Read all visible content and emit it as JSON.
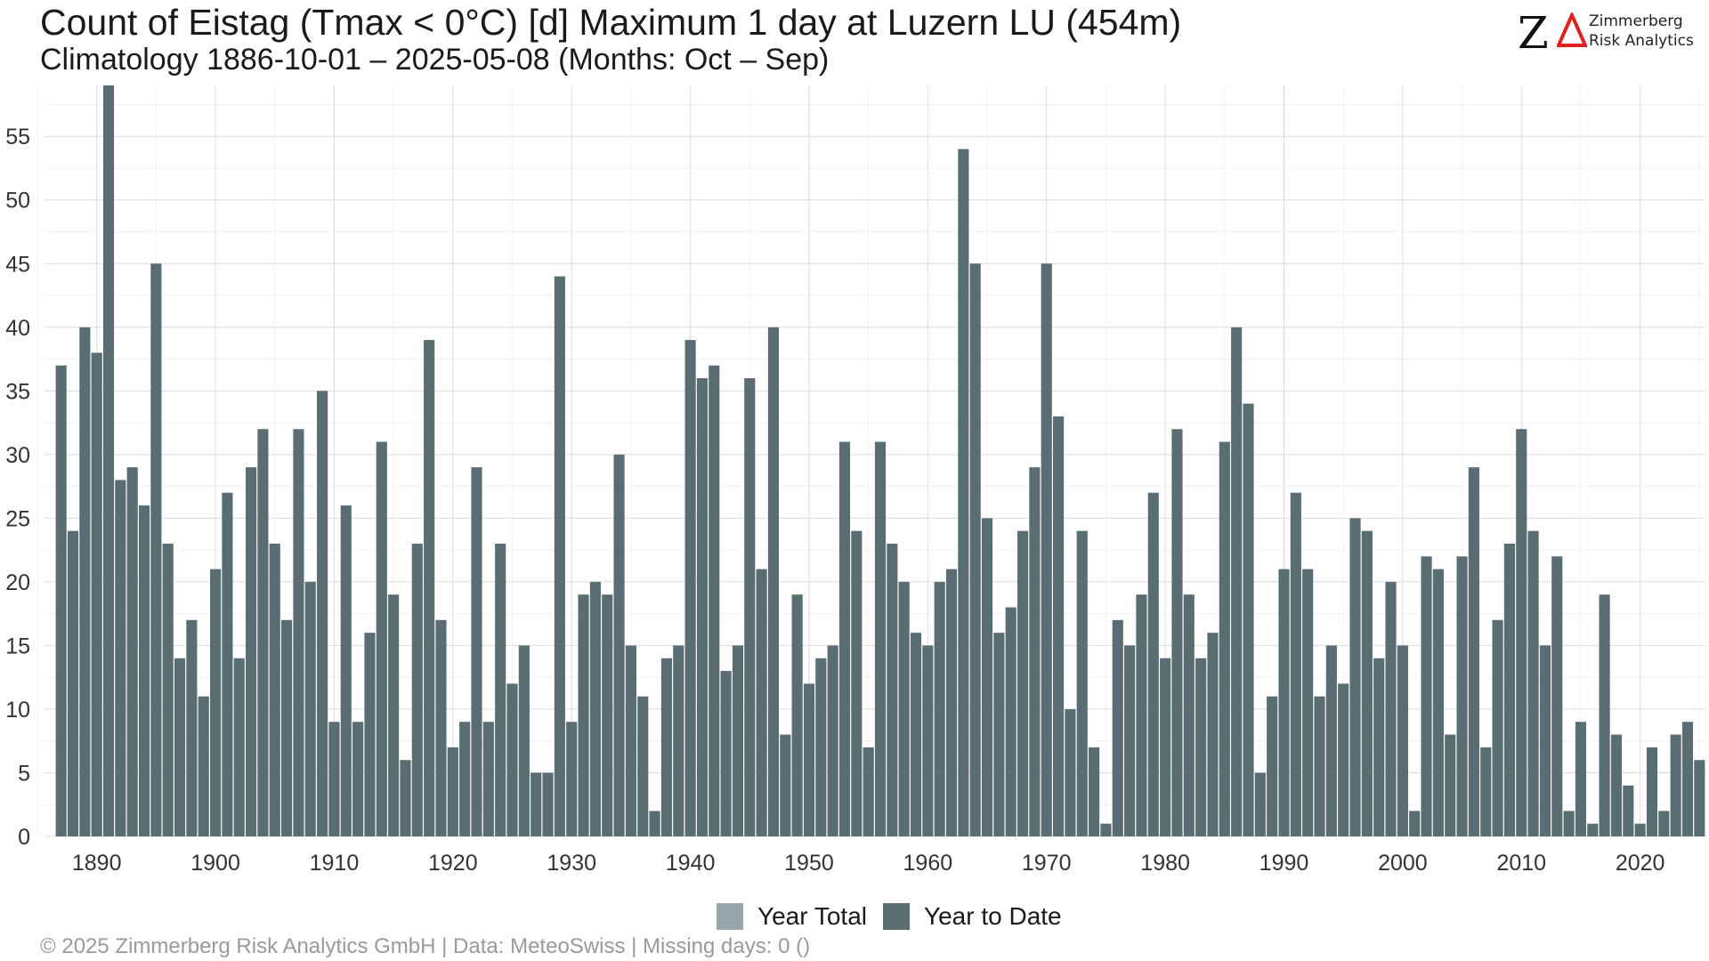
{
  "title": "Count of Eistag (Tmax < 0°C) [d] Maximum 1 day at Luzern  LU (454m)",
  "subtitle": "Climatology 1886-10-01 – 2025-05-08 (Months: Oct – Sep)",
  "logo": {
    "mark": "Z",
    "name_line1": "Zimmerberg",
    "name_line2": "Risk Analytics",
    "delta_color": "#e0201c"
  },
  "legend": [
    {
      "label": "Year Total",
      "color": "#97a6ab"
    },
    {
      "label": "Year to Date",
      "color": "#5a6d73"
    }
  ],
  "caption": "©  2025 Zimmerberg Risk Analytics GmbH | Data: MeteoSwiss | Missing days: 0 ()",
  "chart_data": {
    "type": "bar",
    "xlabel": "",
    "ylabel": "",
    "ylim": [
      0,
      59
    ],
    "yticks": [
      0,
      5,
      10,
      15,
      20,
      25,
      30,
      35,
      40,
      45,
      50,
      55
    ],
    "xticks": [
      1890,
      1900,
      1910,
      1920,
      1930,
      1940,
      1950,
      1960,
      1970,
      1980,
      1990,
      2000,
      2010,
      2020
    ],
    "grid": true,
    "legend_position": "bottom",
    "bar_color": "#5a6d73",
    "x_start": 1887,
    "x": [
      1887,
      1888,
      1889,
      1890,
      1891,
      1892,
      1893,
      1894,
      1895,
      1896,
      1897,
      1898,
      1899,
      1900,
      1901,
      1902,
      1903,
      1904,
      1905,
      1906,
      1907,
      1908,
      1909,
      1910,
      1911,
      1912,
      1913,
      1914,
      1915,
      1916,
      1917,
      1918,
      1919,
      1920,
      1921,
      1922,
      1923,
      1924,
      1925,
      1926,
      1927,
      1928,
      1929,
      1930,
      1931,
      1932,
      1933,
      1934,
      1935,
      1936,
      1937,
      1938,
      1939,
      1940,
      1941,
      1942,
      1943,
      1944,
      1945,
      1946,
      1947,
      1948,
      1949,
      1950,
      1951,
      1952,
      1953,
      1954,
      1955,
      1956,
      1957,
      1958,
      1959,
      1960,
      1961,
      1962,
      1963,
      1964,
      1965,
      1966,
      1967,
      1968,
      1969,
      1970,
      1971,
      1972,
      1973,
      1974,
      1975,
      1976,
      1977,
      1978,
      1979,
      1980,
      1981,
      1982,
      1983,
      1984,
      1985,
      1986,
      1987,
      1988,
      1989,
      1990,
      1991,
      1992,
      1993,
      1994,
      1995,
      1996,
      1997,
      1998,
      1999,
      2000,
      2001,
      2002,
      2003,
      2004,
      2005,
      2006,
      2007,
      2008,
      2009,
      2010,
      2011,
      2012,
      2013,
      2014,
      2015,
      2016,
      2017,
      2018,
      2019,
      2020,
      2021,
      2022,
      2023,
      2024,
      2025
    ],
    "series": [
      {
        "name": "Year to Date",
        "values": [
          37,
          24,
          40,
          38,
          59,
          28,
          29,
          26,
          45,
          23,
          14,
          17,
          11,
          21,
          27,
          14,
          29,
          32,
          23,
          17,
          32,
          20,
          35,
          9,
          26,
          9,
          16,
          31,
          19,
          6,
          23,
          39,
          17,
          7,
          9,
          29,
          9,
          23,
          12,
          15,
          5,
          5,
          44,
          9,
          19,
          20,
          19,
          30,
          15,
          11,
          2,
          14,
          15,
          39,
          36,
          37,
          13,
          15,
          36,
          21,
          40,
          8,
          19,
          12,
          14,
          15,
          31,
          24,
          7,
          31,
          23,
          20,
          16,
          15,
          20,
          21,
          54,
          45,
          25,
          16,
          18,
          24,
          29,
          45,
          33,
          10,
          24,
          7,
          1,
          17,
          15,
          19,
          27,
          14,
          32,
          19,
          14,
          16,
          31,
          40,
          34,
          5,
          11,
          21,
          27,
          21,
          11,
          15,
          12,
          25,
          24,
          14,
          20,
          15,
          2,
          22,
          21,
          8,
          22,
          29,
          7,
          17,
          23,
          32,
          24,
          15,
          22,
          2,
          9,
          1,
          19,
          8,
          4,
          1,
          7,
          2,
          8,
          9,
          6
        ]
      }
    ]
  }
}
